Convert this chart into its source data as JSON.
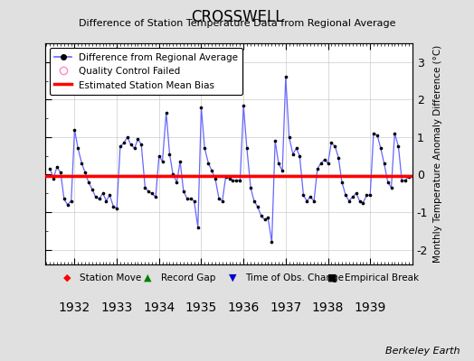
{
  "title": "CROSSWELL",
  "subtitle": "Difference of Station Temperature Data from Regional Average",
  "ylabel": "Monthly Temperature Anomaly Difference (°C)",
  "xlim": [
    1931.3,
    1940.0
  ],
  "ylim": [
    -2.4,
    3.5
  ],
  "yticks": [
    -2,
    -1,
    0,
    1,
    2,
    3
  ],
  "xticks": [
    1932,
    1933,
    1934,
    1935,
    1936,
    1937,
    1938,
    1939
  ],
  "bias_value": -0.04,
  "background_color": "#e0e0e0",
  "plot_bg_color": "#ffffff",
  "line_color": "#6666ff",
  "dot_color": "#000000",
  "bias_color": "#ff0000",
  "credit": "Berkeley Earth",
  "data_x": [
    1931.42,
    1931.5,
    1931.58,
    1931.67,
    1931.75,
    1931.83,
    1931.92,
    1932.0,
    1932.08,
    1932.17,
    1932.25,
    1932.33,
    1932.42,
    1932.5,
    1932.58,
    1932.67,
    1932.75,
    1932.83,
    1932.92,
    1933.0,
    1933.08,
    1933.17,
    1933.25,
    1933.33,
    1933.42,
    1933.5,
    1933.58,
    1933.67,
    1933.75,
    1933.83,
    1933.92,
    1934.0,
    1934.08,
    1934.17,
    1934.25,
    1934.33,
    1934.42,
    1934.5,
    1934.58,
    1934.67,
    1934.75,
    1934.83,
    1934.92,
    1935.0,
    1935.08,
    1935.17,
    1935.25,
    1935.33,
    1935.42,
    1935.5,
    1935.58,
    1935.67,
    1935.75,
    1935.83,
    1935.92,
    1936.0,
    1936.08,
    1936.17,
    1936.25,
    1936.33,
    1936.42,
    1936.5,
    1936.58,
    1936.67,
    1936.75,
    1936.83,
    1936.92,
    1937.0,
    1937.08,
    1937.17,
    1937.25,
    1937.33,
    1937.42,
    1937.5,
    1937.58,
    1937.67,
    1937.75,
    1937.83,
    1937.92,
    1938.0,
    1938.08,
    1938.17,
    1938.25,
    1938.33,
    1938.42,
    1938.5,
    1938.58,
    1938.67,
    1938.75,
    1938.83,
    1938.92,
    1939.0,
    1939.08,
    1939.17,
    1939.25,
    1939.33,
    1939.42,
    1939.5,
    1939.58,
    1939.67,
    1939.75,
    1939.83,
    1939.92
  ],
  "data_y": [
    0.15,
    -0.1,
    0.2,
    0.05,
    -0.65,
    -0.8,
    -0.7,
    1.2,
    0.7,
    0.3,
    0.05,
    -0.2,
    -0.4,
    -0.6,
    -0.65,
    -0.5,
    -0.7,
    -0.55,
    -0.85,
    -0.9,
    0.75,
    0.85,
    1.0,
    0.8,
    0.7,
    0.95,
    0.8,
    -0.35,
    -0.45,
    -0.5,
    -0.6,
    0.5,
    0.35,
    1.65,
    0.55,
    0.0,
    -0.2,
    0.35,
    -0.45,
    -0.65,
    -0.65,
    -0.7,
    -1.4,
    1.8,
    0.7,
    0.3,
    0.1,
    -0.1,
    -0.65,
    -0.7,
    -0.05,
    -0.1,
    -0.15,
    -0.15,
    -0.15,
    1.85,
    0.7,
    -0.35,
    -0.7,
    -0.85,
    -1.1,
    -1.2,
    -1.15,
    -1.8,
    0.9,
    0.3,
    0.1,
    2.6,
    1.0,
    0.55,
    0.7,
    0.5,
    -0.55,
    -0.7,
    -0.6,
    -0.7,
    0.15,
    0.3,
    0.4,
    0.3,
    0.85,
    0.75,
    0.45,
    -0.2,
    -0.55,
    -0.7,
    -0.6,
    -0.5,
    -0.7,
    -0.75,
    -0.55,
    -0.55,
    1.1,
    1.05,
    0.7,
    0.3,
    -0.2,
    -0.35,
    1.1,
    0.75,
    -0.15,
    -0.15,
    -0.05
  ]
}
